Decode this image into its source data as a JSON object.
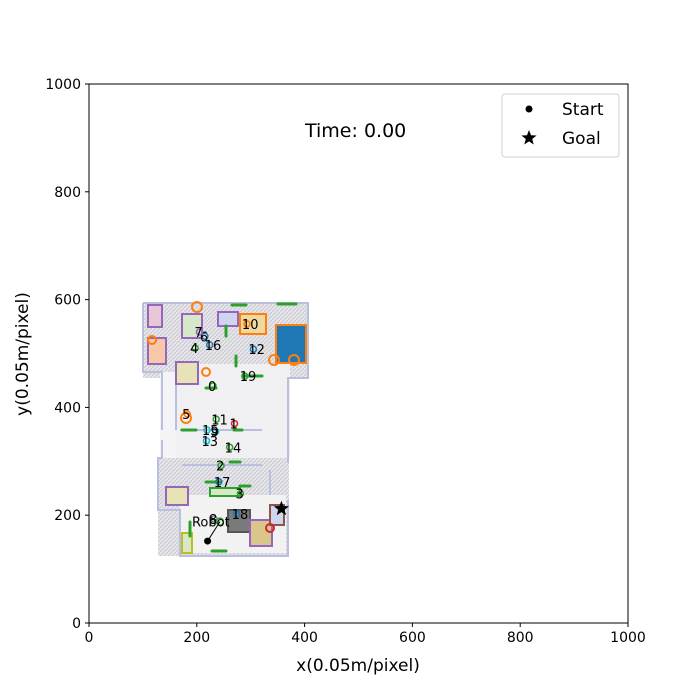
{
  "chart_data": {
    "type": "scatter",
    "xlabel": "x(0.05m/pixel)",
    "ylabel": "y(0.05m/pixel)",
    "xlim": [
      0,
      1000
    ],
    "ylim": [
      0,
      1000
    ],
    "xticks": [
      0,
      200,
      400,
      600,
      800,
      1000
    ],
    "yticks": [
      0,
      200,
      400,
      600,
      800,
      1000
    ],
    "grid": false,
    "legend_position": "top-right",
    "legend": [
      {
        "label": "Start",
        "marker": "dot"
      },
      {
        "label": "Goal",
        "marker": "star"
      }
    ],
    "annotation_time": "Time: 0.00",
    "start": {
      "x": 220,
      "y": 152
    },
    "goal": {
      "x": 357,
      "y": 212
    },
    "robot": {
      "x": 243,
      "y": 188,
      "label": "Robot"
    },
    "agents": [
      {
        "id": "0",
        "x": 230,
        "y": 440,
        "color": "#2ca02c"
      },
      {
        "id": "1",
        "x": 270,
        "y": 370,
        "color": "#d62728"
      },
      {
        "id": "2",
        "x": 245,
        "y": 292,
        "color": "#2ca02c"
      },
      {
        "id": "3",
        "x": 281,
        "y": 240,
        "color": "#2ca02c"
      },
      {
        "id": "4",
        "x": 197,
        "y": 510,
        "color": "#2ca02c"
      },
      {
        "id": "5",
        "x": 182,
        "y": 388,
        "color": "#ff7f0e"
      },
      {
        "id": "6",
        "x": 215,
        "y": 532,
        "color": "#1f77b4"
      },
      {
        "id": "7",
        "x": 205,
        "y": 540,
        "color": "#9467bd"
      },
      {
        "id": "8",
        "x": 232,
        "y": 193,
        "color": "#7f7f7f"
      },
      {
        "id": "9",
        "x": 235,
        "y": 355,
        "color": "#17becf"
      },
      {
        "id": "10",
        "x": 293,
        "y": 555,
        "color": "#ff7f0e"
      },
      {
        "id": "11",
        "x": 236,
        "y": 378,
        "color": "#2ca02c"
      },
      {
        "id": "12",
        "x": 305,
        "y": 508,
        "color": "#1f77b4"
      },
      {
        "id": "13",
        "x": 218,
        "y": 338,
        "color": "#17becf"
      },
      {
        "id": "14",
        "x": 261,
        "y": 326,
        "color": "#2ca02c"
      },
      {
        "id": "15",
        "x": 219,
        "y": 358,
        "color": "#17becf"
      },
      {
        "id": "16",
        "x": 224,
        "y": 516,
        "color": "#1f77b4"
      },
      {
        "id": "17",
        "x": 241,
        "y": 262,
        "color": "#1f77b4"
      },
      {
        "id": "18",
        "x": 274,
        "y": 202,
        "color": "#1f77b4"
      },
      {
        "id": "19",
        "x": 289,
        "y": 458,
        "color": "#2ca02c"
      }
    ]
  }
}
